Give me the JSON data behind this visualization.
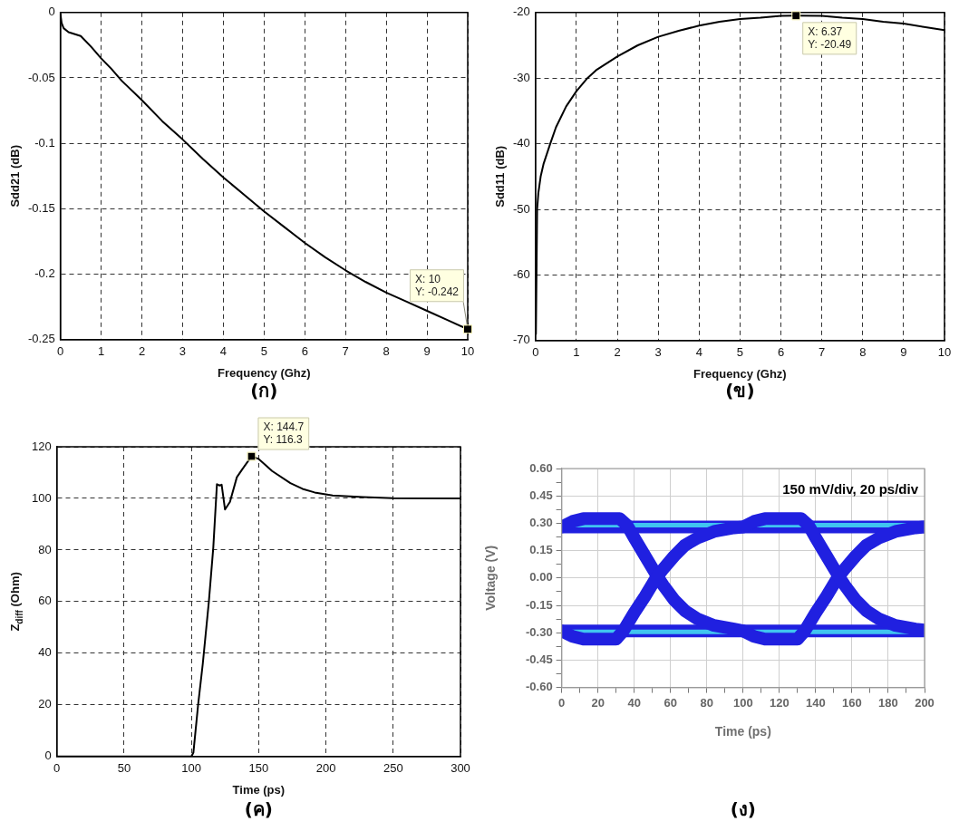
{
  "chart_data": [
    {
      "type": "line",
      "xlabel": "Frequency (Ghz)",
      "ylabel": "Sdd21 (dB)",
      "x": [
        0,
        0.03,
        0.08,
        0.2,
        0.5,
        0.75,
        1,
        1.25,
        1.5,
        2,
        2.5,
        3,
        3.5,
        4,
        4.5,
        5,
        5.5,
        6,
        6.5,
        7,
        7.5,
        8,
        8.5,
        9,
        9.5,
        10
      ],
      "values": [
        -0.001,
        -0.008,
        -0.012,
        -0.015,
        -0.018,
        -0.026,
        -0.035,
        -0.043,
        -0.052,
        -0.067,
        -0.083,
        -0.097,
        -0.112,
        -0.126,
        -0.139,
        -0.152,
        -0.164,
        -0.176,
        -0.187,
        -0.197,
        -0.206,
        -0.214,
        -0.221,
        -0.228,
        -0.235,
        -0.242
      ],
      "color": "#000000",
      "xlim": [
        0,
        10
      ],
      "ylim": [
        -0.25,
        0
      ],
      "xticks": [
        0,
        1,
        2,
        3,
        4,
        5,
        6,
        7,
        8,
        9,
        10
      ],
      "yticks": [
        -0.25,
        -0.2,
        -0.15,
        -0.1,
        -0.05,
        0
      ],
      "grid": true,
      "annotations": [
        {
          "text": "X: 10\nY: -0.242",
          "x": 10,
          "y": -0.242
        },
        "(ก)"
      ]
    },
    {
      "type": "line",
      "xlabel": "Frequency (Ghz)",
      "ylabel": "Sdd11 (dB)",
      "x": [
        0.01,
        0.04,
        0.07,
        0.126,
        0.2,
        0.36,
        0.5,
        0.75,
        1,
        1.27,
        1.5,
        2,
        2.5,
        3,
        3.5,
        4,
        4.5,
        5,
        5.5,
        6,
        6.37,
        7,
        7.5,
        8,
        8.5,
        9,
        9.5,
        10
      ],
      "values": [
        -69,
        -50,
        -47.5,
        -45,
        -43,
        -40,
        -37.5,
        -34.3,
        -32,
        -30,
        -28.7,
        -26.7,
        -25,
        -23.7,
        -22.8,
        -22,
        -21.4,
        -21,
        -20.8,
        -20.5,
        -20.49,
        -20.5,
        -20.8,
        -21,
        -21.4,
        -21.7,
        -22.2,
        -22.7
      ],
      "color": "#000000",
      "xlim": [
        0,
        10
      ],
      "ylim": [
        -70,
        -20
      ],
      "xticks": [
        0,
        1,
        2,
        3,
        4,
        5,
        6,
        7,
        8,
        9,
        10
      ],
      "yticks": [
        -70,
        -60,
        -50,
        -40,
        -30,
        -20
      ],
      "grid": true,
      "annotations": [
        {
          "text": "X: 6.37\nY: -20.49",
          "x": 6.37,
          "y": -20.49
        },
        "(ข)"
      ]
    },
    {
      "type": "line",
      "xlabel": "Time (ps)",
      "ylabel": "Z$_{diff}$ (Ohm)",
      "x": [
        0,
        100,
        101.5,
        105,
        108.5,
        113,
        116.3,
        119,
        121,
        122.5,
        125,
        128.7,
        133.8,
        137.7,
        144.7,
        150,
        160,
        173.6,
        182.6,
        191.6,
        205,
        227.5,
        250,
        300
      ],
      "values": [
        0,
        0,
        1.5,
        20,
        36,
        60,
        81,
        105.5,
        105,
        105.3,
        95.7,
        98.7,
        108.2,
        111.2,
        116.3,
        115.3,
        110.6,
        105.9,
        103.7,
        102.3,
        101.1,
        100.5,
        100.1,
        100
      ],
      "color": "#000000",
      "xlim": [
        0,
        300
      ],
      "ylim": [
        0,
        120
      ],
      "xticks": [
        0,
        50,
        100,
        150,
        200,
        250,
        300
      ],
      "yticks": [
        0,
        20,
        40,
        60,
        80,
        100,
        120
      ],
      "grid": true,
      "annotations": [
        {
          "text": "X: 144.7\nY: 116.3",
          "x": 144.7,
          "y": 116.3
        },
        "(ค)"
      ]
    },
    {
      "type": "line",
      "xlabel": "Time (ps)",
      "ylabel": "Voltage (V)",
      "series": [
        {
          "color": "#2020e0",
          "x": [
            0,
            200
          ],
          "values": [
            0.28,
            0.28
          ]
        },
        {
          "color": "#2020e0",
          "x": [
            0,
            200
          ],
          "values": [
            -0.29,
            -0.29
          ]
        },
        {
          "color": "#40c4f0",
          "x": [
            0,
            200
          ],
          "values": [
            0.29,
            0.29
          ]
        },
        {
          "color": "#40c4f0",
          "x": [
            0,
            200
          ],
          "values": [
            -0.295,
            -0.295
          ]
        },
        {
          "color": "#2020e0",
          "x": [
            0,
            6,
            12,
            32,
            36,
            40,
            46,
            52,
            56,
            62,
            68,
            75,
            84,
            95,
            100,
            106,
            112,
            130,
            134,
            140,
            146,
            152,
            156,
            162,
            168,
            175,
            184,
            195,
            200
          ],
          "values": [
            0.28,
            0.31,
            0.325,
            0.325,
            0.29,
            0.22,
            0.12,
            0.02,
            -0.04,
            -0.12,
            -0.18,
            -0.225,
            -0.26,
            -0.28,
            -0.29,
            -0.32,
            -0.335,
            -0.335,
            -0.29,
            -0.19,
            -0.1,
            0,
            0.05,
            0.12,
            0.18,
            0.22,
            0.255,
            0.275,
            0.28
          ]
        },
        {
          "color": "#2020e0",
          "x": [
            0,
            6,
            12,
            30,
            34,
            40,
            46,
            52,
            56,
            62,
            68,
            75,
            84,
            95,
            100,
            106,
            112,
            132,
            136,
            140,
            146,
            152,
            156,
            162,
            168,
            175,
            184,
            195,
            200
          ],
          "values": [
            -0.29,
            -0.32,
            -0.335,
            -0.335,
            -0.29,
            -0.19,
            -0.1,
            0,
            0.05,
            0.12,
            0.18,
            0.22,
            0.255,
            0.275,
            0.28,
            0.31,
            0.325,
            0.325,
            0.29,
            0.22,
            0.12,
            0.02,
            -0.04,
            -0.12,
            -0.18,
            -0.225,
            -0.26,
            -0.28,
            -0.285
          ]
        }
      ],
      "xlim": [
        0,
        200
      ],
      "ylim": [
        -0.6,
        0.6
      ],
      "xticks": [
        0,
        {
          "value": 10,
          "label": null
        },
        20,
        {
          "value": 30,
          "label": null
        },
        40,
        {
          "value": 50,
          "label": null
        },
        60,
        {
          "value": 70,
          "label": null
        },
        80,
        {
          "value": 90,
          "label": null
        },
        100,
        {
          "value": 110,
          "label": null
        },
        120,
        {
          "value": 130,
          "label": null
        },
        140,
        {
          "value": 150,
          "label": null
        },
        160,
        {
          "value": 170,
          "label": null
        },
        180,
        {
          "value": 190,
          "label": null
        },
        200
      ],
      "yticks": [
        {
          "value": -0.6,
          "label": "-0.60"
        },
        {
          "value": -0.525,
          "label": null
        },
        {
          "value": -0.45,
          "label": "-0.45"
        },
        {
          "value": -0.375,
          "label": null
        },
        {
          "value": -0.3,
          "label": "-0.30"
        },
        {
          "value": -0.225,
          "label": null
        },
        {
          "value": -0.15,
          "label": "-0.15"
        },
        {
          "value": -0.075,
          "label": null
        },
        {
          "value": 0,
          "label": "0.00"
        },
        {
          "value": 0.075,
          "label": null
        },
        {
          "value": 0.15,
          "label": "0.15"
        },
        {
          "value": 0.225,
          "label": null
        },
        {
          "value": 0.3,
          "label": "0.30"
        },
        {
          "value": 0.375,
          "label": null
        },
        {
          "value": 0.45,
          "label": "0.45"
        },
        {
          "value": 0.525,
          "label": null
        },
        {
          "value": 0.6,
          "label": "0.60"
        }
      ],
      "grid": true,
      "annotations": [
        "150 mV/div, 20 ps/div",
        "(ง)"
      ]
    }
  ]
}
